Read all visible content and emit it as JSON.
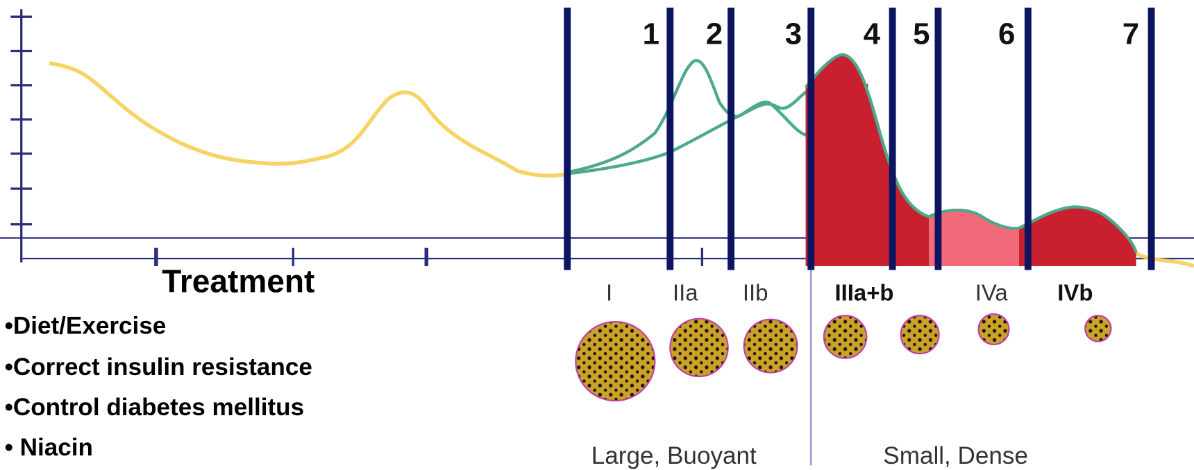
{
  "header_numbers": [
    "1",
    "2",
    "3",
    "4",
    "5",
    "6",
    "7"
  ],
  "subclasses": [
    "I",
    "IIa",
    "IIb",
    "IIIa+b",
    "IVa",
    "IVb"
  ],
  "density_labels": [
    "Large, Buoyant",
    "Small, Dense"
  ],
  "treatment": {
    "title": "Treatment",
    "items": [
      "•Diet/Exercise",
      "•Correct insulin resistance",
      "•Control diabetes mellitus",
      "• Niacin"
    ]
  }
}
